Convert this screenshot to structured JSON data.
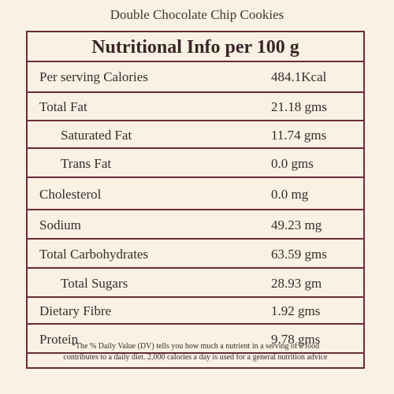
{
  "product": {
    "title": "Double Chocolate Chip Cookies"
  },
  "panel": {
    "heading": "Nutritional Info per 100 g",
    "rows": [
      {
        "label": "Per serving Calories",
        "value": "484.1Kcal",
        "indent": false
      },
      {
        "label": "Total Fat",
        "value": "21.18 gms",
        "indent": false
      },
      {
        "label": "Saturated Fat",
        "value": "11.74 gms",
        "indent": true
      },
      {
        "label": "Trans Fat",
        "value": "0.0 gms",
        "indent": true
      },
      {
        "label": "Cholesterol",
        "value": "0.0 mg",
        "indent": false
      },
      {
        "label": "Sodium",
        "value": "49.23 mg",
        "indent": false
      },
      {
        "label": "Total Carbohydrates",
        "value": "63.59 gms",
        "indent": false
      },
      {
        "label": "Total Sugars",
        "value": "28.93 gm",
        "indent": true
      },
      {
        "label": "Dietary Fibre",
        "value": "1.92 gms",
        "indent": false
      },
      {
        "label": "Protein",
        "value": "9.78 gms",
        "indent": false
      }
    ],
    "footnote_line1": "*The % Daily Value (DV) tells you how much a nutrient in a serving of a food",
    "footnote_line2": "contributes to a daily diet. 2,000 calories a day is used for a general nutrition advice"
  },
  "colors": {
    "border": "#6b2b3b",
    "background": "#f8f1e4"
  }
}
